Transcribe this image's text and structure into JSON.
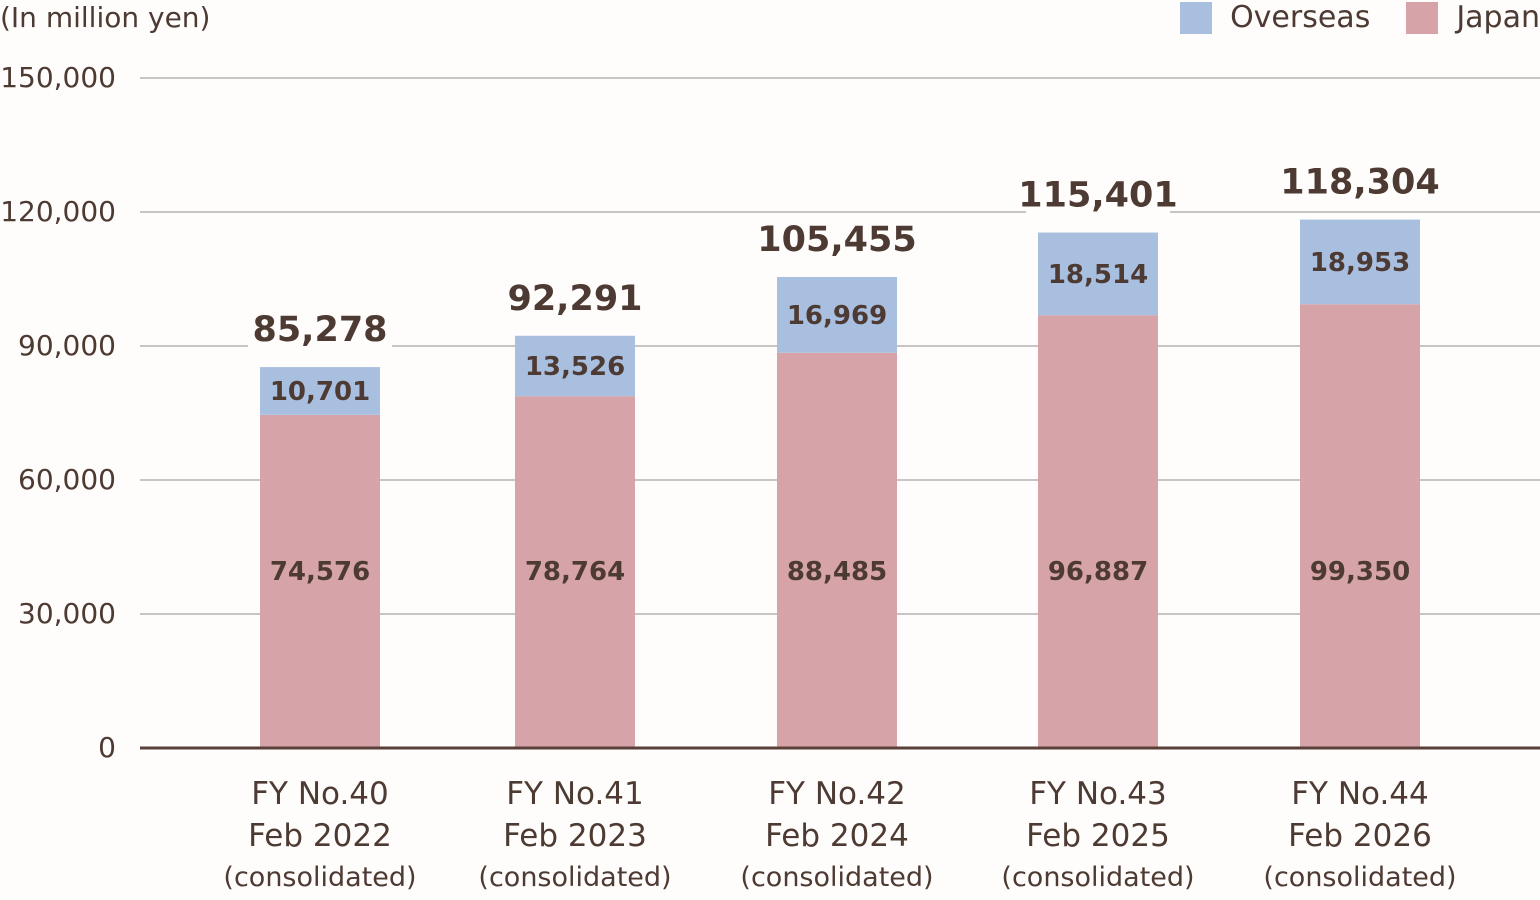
{
  "chart_data": {
    "type": "bar",
    "stacked": true,
    "unit_label": "(In million yen)",
    "y_ticks": [
      "150,000",
      "120,000",
      "90,000",
      "60,000",
      "30,000",
      "0"
    ],
    "ylim": [
      0,
      150000
    ],
    "grid": true,
    "legend": {
      "placement": "top-right",
      "items": [
        {
          "name": "Overseas",
          "color": "#a9bfe0"
        },
        {
          "name": "Japan",
          "color": "#d5a3a8"
        }
      ]
    },
    "categories": [
      {
        "line1": "FY No.40",
        "line2": "Feb 2022",
        "line3": "(consolidated)"
      },
      {
        "line1": "FY No.41",
        "line2": "Feb 2023",
        "line3": "(consolidated)"
      },
      {
        "line1": "FY No.42",
        "line2": "Feb 2024",
        "line3": "(consolidated)"
      },
      {
        "line1": "FY No.43",
        "line2": "Feb 2025",
        "line3": "(consolidated)"
      },
      {
        "line1": "FY No.44",
        "line2": "Feb 2026",
        "line3": "(consolidated)"
      }
    ],
    "series": [
      {
        "name": "Japan",
        "color": "#d5a3a8",
        "values": [
          74576,
          78764,
          88485,
          96887,
          99350
        ],
        "labels": [
          "74,576",
          "78,764",
          "88,485",
          "96,887",
          "99,350"
        ]
      },
      {
        "name": "Overseas",
        "color": "#a9bfe0",
        "values": [
          10701,
          13526,
          16969,
          18514,
          18953
        ],
        "labels": [
          "10,701",
          "13,526",
          "16,969",
          "18,514",
          "18,953"
        ]
      }
    ],
    "totals": [
      85278,
      92291,
      105455,
      115401,
      118304
    ],
    "total_labels": [
      "85,278",
      "92,291",
      "105,455",
      "115,401",
      "118,304"
    ]
  }
}
